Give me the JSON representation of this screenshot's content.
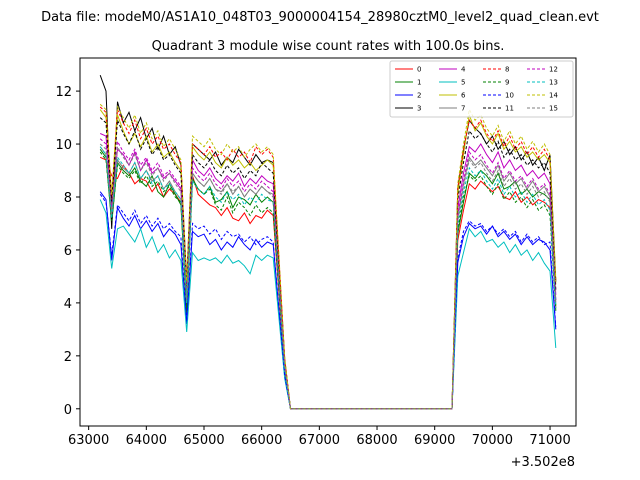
{
  "figure": {
    "suptitle": "Data file: modeM0/AS1A10_048T03_9000004154_28980cztM0_level2_quad_clean.evt"
  },
  "chart_data": {
    "type": "line",
    "title": "Quadrant 3 module wise count rates with 100.0s bins.",
    "xlabel": "",
    "ylabel": "",
    "x_offset_text": "+3.502e8",
    "xlim": [
      62850,
      71450
    ],
    "ylim": [
      -0.65,
      13.25
    ],
    "xticks": [
      63000,
      64000,
      65000,
      66000,
      67000,
      68000,
      69000,
      70000,
      71000
    ],
    "xtick_labels": [
      "63000",
      "64000",
      "65000",
      "66000",
      "67000",
      "68000",
      "69000",
      "70000",
      "71000"
    ],
    "yticks": [
      0,
      2,
      4,
      6,
      8,
      10,
      12
    ],
    "ytick_labels": [
      "0",
      "2",
      "4",
      "6",
      "8",
      "10",
      "12"
    ],
    "grid": false,
    "legend": {
      "location": "top-right",
      "columns": 4
    },
    "gap": {
      "start": 66500,
      "end": 69300,
      "value": 0
    },
    "series": [
      {
        "name": "0",
        "color": "#ff0000",
        "dash": "solid",
        "seg1": [
          9.5,
          9.4,
          8.8,
          8.7,
          9.2,
          8.9,
          8.5,
          8.7,
          8.6,
          8.2,
          8.5,
          8.0,
          8.3,
          8.1,
          7.8,
          3.9,
          8.8,
          8.1,
          7.9,
          7.7,
          7.6,
          7.3,
          7.6,
          7.2,
          7.1,
          7.4,
          7.0,
          7.3,
          7.2,
          7.5,
          7.3
        ],
        "seg2": [
          7.5,
          8.5,
          8.3,
          8.6,
          8.4,
          8.2,
          8.4,
          8.0,
          7.9,
          8.2,
          7.8,
          8.0,
          7.7,
          7.9,
          7.8,
          7.6,
          3.8
        ]
      },
      {
        "name": "1",
        "color": "#008000",
        "dash": "solid",
        "seg1": [
          9.8,
          9.5,
          7.0,
          9.3,
          9.0,
          8.8,
          9.1,
          8.6,
          8.4,
          8.8,
          8.2,
          8.0,
          8.5,
          8.1,
          7.7,
          3.6,
          8.7,
          8.3,
          8.1,
          8.4,
          7.8,
          7.9,
          8.2,
          7.6,
          8.0,
          7.9,
          7.7,
          8.1,
          7.8,
          8.0,
          7.8
        ],
        "seg2": [
          7.8,
          8.9,
          8.7,
          9.0,
          8.8,
          8.5,
          8.9,
          8.3,
          8.4,
          8.6,
          8.1,
          8.3,
          8.0,
          8.2,
          8.1,
          7.9,
          3.9
        ]
      },
      {
        "name": "2",
        "color": "#0000ff",
        "dash": "solid",
        "seg1": [
          8.2,
          7.9,
          5.6,
          7.6,
          7.2,
          6.9,
          7.3,
          6.8,
          7.1,
          6.7,
          7.0,
          6.5,
          6.8,
          6.6,
          6.2,
          3.2,
          6.7,
          6.5,
          6.6,
          6.2,
          6.4,
          6.0,
          6.3,
          6.1,
          6.5,
          6.2,
          6.0,
          6.4,
          6.1,
          6.3,
          6.2
        ],
        "seg2": [
          6.5,
          7.0,
          6.8,
          6.9,
          6.6,
          6.9,
          6.5,
          6.7,
          6.4,
          6.6,
          6.2,
          6.5,
          6.2,
          6.4,
          6.3,
          6.0,
          3.0
        ]
      },
      {
        "name": "3",
        "color": "#000000",
        "dash": "solid",
        "seg1": [
          12.6,
          12.0,
          6.8,
          11.6,
          10.8,
          11.2,
          10.5,
          11.0,
          10.2,
          10.6,
          9.8,
          10.3,
          9.6,
          9.9,
          9.2,
          4.8,
          10.0,
          9.8,
          9.6,
          9.4,
          9.7,
          9.2,
          9.5,
          9.3,
          9.8,
          9.5,
          9.2,
          9.6,
          9.3,
          9.4,
          9.3
        ],
        "seg2": [
          9.8,
          10.9,
          10.6,
          10.4,
          10.0,
          10.3,
          9.8,
          10.1,
          9.6,
          9.9,
          9.4,
          9.7,
          9.2,
          9.5,
          9.0,
          9.6,
          4.8
        ]
      },
      {
        "name": "4",
        "color": "#bf00bf",
        "dash": "solid",
        "seg1": [
          10.4,
          10.3,
          7.6,
          9.8,
          9.6,
          9.2,
          9.7,
          9.0,
          9.4,
          8.9,
          9.1,
          8.7,
          8.9,
          8.6,
          8.3,
          4.2,
          9.4,
          9.0,
          8.8,
          9.1,
          8.7,
          8.5,
          8.8,
          8.6,
          8.9,
          8.4,
          8.7,
          8.5,
          8.8,
          8.6,
          8.5
        ],
        "seg2": [
          8.9,
          9.9,
          9.7,
          10.0,
          9.6,
          9.3,
          9.7,
          9.1,
          9.4,
          9.0,
          9.2,
          8.8,
          9.0,
          8.7,
          8.9,
          8.5,
          4.3
        ]
      },
      {
        "name": "5",
        "color": "#00bfbf",
        "dash": "solid",
        "seg1": [
          7.9,
          7.4,
          5.3,
          6.8,
          6.9,
          6.6,
          6.3,
          6.8,
          6.1,
          6.5,
          5.9,
          6.2,
          5.7,
          6.0,
          5.6,
          2.9,
          5.9,
          5.6,
          5.7,
          5.6,
          5.7,
          5.5,
          5.8,
          5.5,
          5.6,
          5.4,
          5.1,
          5.8,
          5.6,
          5.8,
          5.7
        ],
        "seg2": [
          5.9,
          6.8,
          6.5,
          6.7,
          6.3,
          6.4,
          6.1,
          6.3,
          5.9,
          6.2,
          5.8,
          6.0,
          5.6,
          5.9,
          5.5,
          5.2,
          2.3
        ]
      },
      {
        "name": "6",
        "color": "#bfbf00",
        "dash": "solid",
        "seg1": [
          11.3,
          11.0,
          7.9,
          11.1,
          10.5,
          10.0,
          10.4,
          9.9,
          10.3,
          9.7,
          10.0,
          9.5,
          9.7,
          9.3,
          9.0,
          4.6,
          9.9,
          9.6,
          9.4,
          9.7,
          9.3,
          9.1,
          9.5,
          9.2,
          9.4,
          9.1,
          9.3,
          9.0,
          9.2,
          9.4,
          9.2
        ],
        "seg2": [
          9.6,
          11.1,
          10.5,
          10.8,
          10.3,
          10.0,
          10.4,
          9.8,
          10.1,
          9.7,
          9.9,
          9.5,
          9.7,
          9.4,
          9.6,
          9.3,
          4.7
        ]
      },
      {
        "name": "7",
        "color": "#7f7f7f",
        "dash": "solid",
        "seg1": [
          9.9,
          9.6,
          7.3,
          9.4,
          9.1,
          8.9,
          9.3,
          8.7,
          9.0,
          8.6,
          8.8,
          8.3,
          8.6,
          8.2,
          7.9,
          4.0,
          8.9,
          8.6,
          8.4,
          8.7,
          8.3,
          8.2,
          8.5,
          8.1,
          8.4,
          8.0,
          8.3,
          8.1,
          8.4,
          8.2,
          8.1
        ],
        "seg2": [
          8.5,
          9.5,
          9.2,
          9.4,
          9.1,
          8.8,
          9.2,
          8.6,
          8.9,
          8.5,
          8.7,
          8.3,
          8.6,
          8.2,
          8.4,
          8.0,
          4.1
        ]
      },
      {
        "name": "8",
        "color": "#ff0000",
        "dash": "dashed",
        "seg1": [
          11.4,
          11.2,
          8.0,
          11.3,
          10.8,
          10.4,
          10.9,
          10.2,
          10.6,
          10.0,
          10.3,
          9.8,
          10.0,
          9.6,
          9.3,
          4.7,
          10.0,
          9.8,
          9.6,
          9.9,
          9.5,
          9.7,
          9.4,
          9.8,
          9.5,
          9.7,
          9.3,
          9.9,
          9.6,
          9.8,
          9.5
        ],
        "seg2": [
          9.8,
          10.9,
          10.6,
          10.9,
          10.4,
          10.1,
          10.5,
          9.9,
          10.3,
          9.8,
          10.1,
          9.6,
          9.9,
          9.5,
          9.8,
          9.4,
          4.8
        ]
      },
      {
        "name": "9",
        "color": "#008000",
        "dash": "dashed",
        "seg1": [
          9.7,
          9.4,
          7.1,
          9.2,
          8.9,
          8.7,
          9.0,
          8.5,
          8.8,
          8.4,
          8.6,
          8.2,
          8.4,
          8.0,
          7.8,
          3.9,
          8.6,
          8.3,
          8.1,
          8.3,
          7.7,
          7.5,
          8.0,
          7.4,
          7.8,
          7.6,
          7.3,
          7.7,
          7.4,
          7.6,
          7.4
        ],
        "seg2": [
          8.0,
          8.8,
          8.6,
          8.8,
          8.4,
          8.1,
          8.5,
          7.9,
          8.2,
          7.8,
          8.0,
          7.6,
          7.9,
          7.5,
          7.7,
          7.3,
          3.7
        ]
      },
      {
        "name": "10",
        "color": "#0000ff",
        "dash": "dashed",
        "seg1": [
          8.1,
          7.8,
          5.8,
          7.7,
          7.4,
          7.1,
          7.5,
          7.0,
          7.3,
          6.9,
          7.2,
          6.8,
          7.0,
          6.7,
          6.5,
          3.3,
          7.0,
          6.8,
          6.9,
          6.6,
          6.8,
          6.4,
          6.7,
          6.5,
          6.6,
          6.3,
          6.5,
          6.2,
          6.4,
          6.5,
          6.3
        ],
        "seg2": [
          6.7,
          7.1,
          6.9,
          7.0,
          6.7,
          6.9,
          6.6,
          6.8,
          6.5,
          6.7,
          6.3,
          6.6,
          6.3,
          6.5,
          6.2,
          6.3,
          3.1
        ]
      },
      {
        "name": "11",
        "color": "#000000",
        "dash": "dashed",
        "seg1": [
          11.0,
          10.8,
          7.8,
          10.9,
          10.4,
          10.0,
          10.5,
          9.8,
          10.2,
          9.6,
          9.9,
          9.4,
          9.6,
          9.2,
          8.9,
          4.5,
          9.6,
          9.3,
          9.1,
          9.4,
          9.0,
          8.8,
          9.2,
          8.9,
          9.1,
          8.7,
          9.0,
          8.8,
          9.3,
          9.1,
          8.9
        ],
        "seg2": [
          9.3,
          10.5,
          10.2,
          10.4,
          10.0,
          9.7,
          10.1,
          9.5,
          9.8,
          9.4,
          9.6,
          9.2,
          9.4,
          9.1,
          9.3,
          8.9,
          4.5
        ]
      },
      {
        "name": "12",
        "color": "#bf00bf",
        "dash": "dashed",
        "seg1": [
          10.2,
          10.0,
          7.5,
          10.1,
          9.7,
          9.4,
          9.8,
          9.2,
          9.5,
          9.0,
          9.3,
          8.8,
          9.0,
          8.7,
          8.4,
          4.3,
          9.1,
          8.8,
          8.6,
          8.9,
          8.5,
          8.3,
          8.7,
          8.4,
          8.6,
          8.2,
          8.5,
          8.3,
          8.6,
          8.4,
          8.2
        ],
        "seg2": [
          8.6,
          9.7,
          9.4,
          9.6,
          9.2,
          8.9,
          9.3,
          8.7,
          9.0,
          8.6,
          8.8,
          8.4,
          8.7,
          8.3,
          8.5,
          8.1,
          4.1
        ]
      },
      {
        "name": "13",
        "color": "#00bfbf",
        "dash": "dashed",
        "seg1": [
          9.9,
          9.6,
          7.2,
          9.5,
          9.2,
          8.9,
          9.3,
          8.7,
          9.0,
          8.5,
          8.8,
          8.3,
          8.5,
          8.2,
          7.9,
          4.0,
          8.6,
          8.3,
          8.1,
          8.4,
          8.0,
          7.8,
          8.2,
          7.9,
          8.1,
          7.7,
          8.0,
          7.8,
          8.1,
          7.9,
          7.8
        ],
        "seg2": [
          8.2,
          9.1,
          8.8,
          9.0,
          8.6,
          8.3,
          8.7,
          8.1,
          8.4,
          8.0,
          8.2,
          7.8,
          8.1,
          7.7,
          7.9,
          7.5,
          3.8
        ]
      },
      {
        "name": "14",
        "color": "#bfbf00",
        "dash": "dashed",
        "seg1": [
          11.5,
          11.3,
          8.1,
          11.4,
          11.0,
          10.6,
          11.1,
          10.4,
          10.8,
          10.2,
          10.5,
          9.9,
          10.2,
          9.8,
          9.4,
          4.8,
          10.3,
          10.1,
          9.9,
          10.2,
          9.8,
          9.6,
          10.0,
          9.7,
          9.9,
          9.5,
          9.8,
          10.0,
          9.7,
          9.9,
          9.6
        ],
        "seg2": [
          10.0,
          11.3,
          10.9,
          11.1,
          10.6,
          10.3,
          10.7,
          10.1,
          10.5,
          10.0,
          10.3,
          9.8,
          10.1,
          9.7,
          10.0,
          9.6,
          4.9
        ]
      },
      {
        "name": "15",
        "color": "#7f7f7f",
        "dash": "dashed",
        "seg1": [
          10.0,
          9.8,
          7.4,
          9.9,
          9.5,
          9.2,
          9.6,
          9.0,
          9.3,
          8.8,
          9.1,
          8.6,
          8.9,
          8.5,
          8.2,
          4.1,
          8.9,
          8.6,
          8.4,
          8.7,
          8.3,
          8.1,
          8.5,
          8.2,
          8.4,
          8.0,
          8.3,
          8.1,
          8.4,
          8.2,
          8.0
        ],
        "seg2": [
          8.4,
          9.4,
          9.1,
          9.3,
          8.9,
          8.6,
          9.0,
          8.4,
          8.7,
          8.3,
          8.5,
          8.1,
          8.4,
          8.0,
          8.2,
          7.8,
          4.0
        ]
      }
    ]
  }
}
